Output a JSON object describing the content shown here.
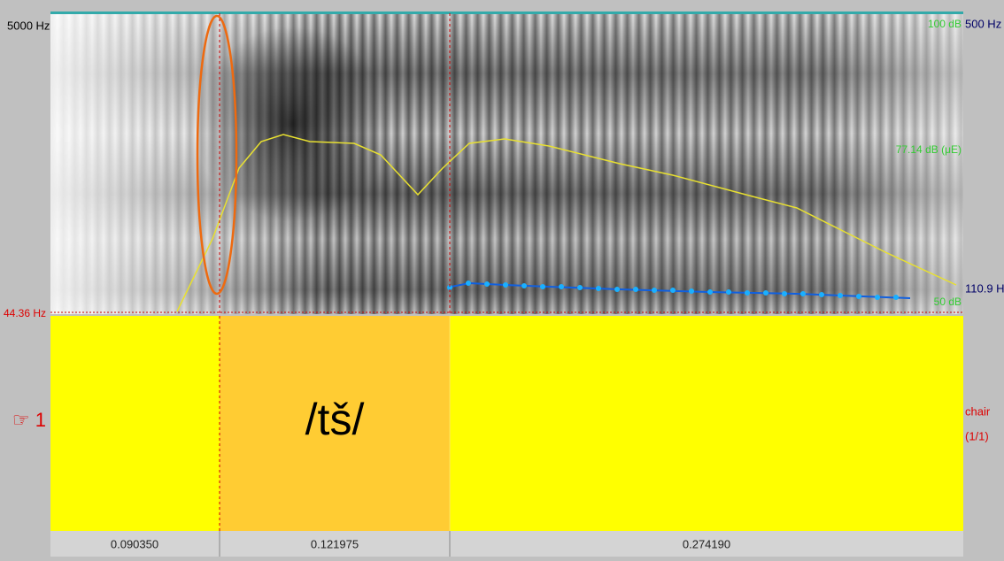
{
  "spectrogram": {
    "freq_top": "5000 Hz",
    "freq_bottom": "44.36 Hz",
    "intensity_top": "100 dB",
    "intensity_mid": "77.14 dB (μE)",
    "intensity_bottom": "50 dB",
    "pitch_top": "500 Hz",
    "pitch_value": "110.9 H"
  },
  "tier": {
    "number": "☞ 1",
    "label": "/tš/",
    "name": "chair",
    "count": "(1/1)"
  },
  "durations": [
    "0.090350",
    "0.121975",
    "0.274190"
  ]
}
